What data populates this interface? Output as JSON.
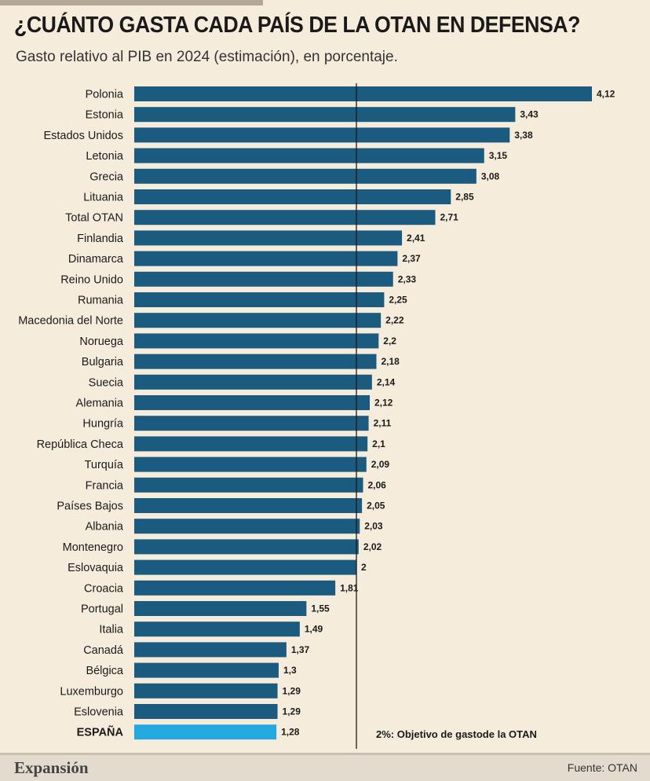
{
  "header": {
    "title": "¿CUÁNTO GASTA CADA PAÍS DE LA OTAN EN DEFENSA?",
    "subtitle": "Gasto relativo al PIB en 2024 (estimación), en porcentaje."
  },
  "footer": {
    "brand": "Expansión",
    "source": "Fuente: OTAN"
  },
  "colors": {
    "bar": "#1b5b7f",
    "highlight": "#23a8e0",
    "background": "#f6ecdc"
  },
  "chart_data": {
    "type": "bar",
    "orientation": "horizontal",
    "title": "¿CUÁNTO GASTA CADA PAÍS DE LA OTAN EN DEFENSA?",
    "subtitle": "Gasto relativo al PIB en 2024 (estimación), en porcentaje.",
    "xlim": [
      0,
      4.12
    ],
    "reference_line": {
      "value": 2,
      "label": "2%: Objetivo de gastode la OTAN"
    },
    "highlight_category": "ESPAÑA",
    "categories": [
      "Polonia",
      "Estonia",
      "Estados Unidos",
      "Letonia",
      "Grecia",
      "Lituania",
      "Total OTAN",
      "Finlandia",
      "Dinamarca",
      "Reino Unido",
      "Rumania",
      "Macedonia del Norte",
      "Noruega",
      "Bulgaria",
      "Suecia",
      "Alemania",
      "Hungría",
      "República Checa",
      "Turquía",
      "Francia",
      "Países Bajos",
      "Albania",
      "Montenegro",
      "Eslovaquia",
      "Croacia",
      "Portugal",
      "Italia",
      "Canadá",
      "Bélgica",
      "Luxemburgo",
      "Eslovenia",
      "ESPAÑA"
    ],
    "values": [
      4.12,
      3.43,
      3.38,
      3.15,
      3.08,
      2.85,
      2.71,
      2.41,
      2.37,
      2.33,
      2.25,
      2.22,
      2.2,
      2.18,
      2.14,
      2.12,
      2.11,
      2.1,
      2.09,
      2.06,
      2.05,
      2.03,
      2.02,
      2,
      1.81,
      1.55,
      1.49,
      1.37,
      1.3,
      1.29,
      1.29,
      1.28
    ],
    "value_labels": [
      "4,12",
      "3,43",
      "3,38",
      "3,15",
      "3,08",
      "2,85",
      "2,71",
      "2,41",
      "2,37",
      "2,33",
      "2,25",
      "2,22",
      "2,2",
      "2,18",
      "2,14",
      "2,12",
      "2,11",
      "2,1",
      "2,09",
      "2,06",
      "2,05",
      "2,03",
      "2,02",
      "2",
      "1,81",
      "1,55",
      "1,49",
      "1,37",
      "1,3",
      "1,29",
      "1,29",
      "1,28"
    ]
  }
}
